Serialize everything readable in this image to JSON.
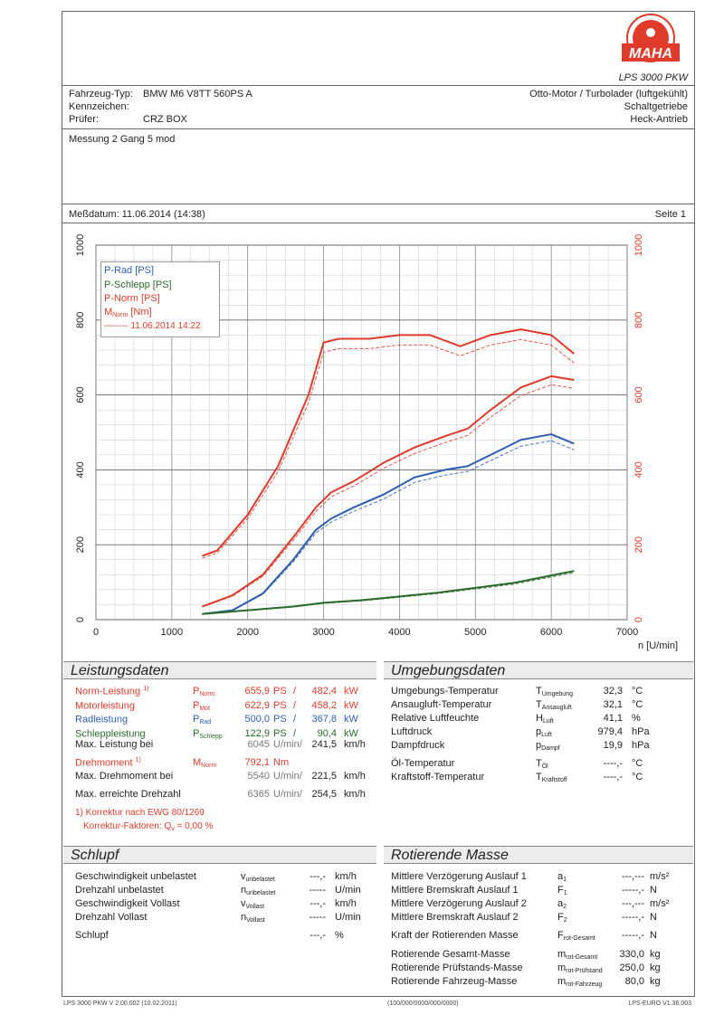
{
  "header": {
    "product": "LPS 3000 PKW",
    "brand": "MAHA",
    "vehicle_type_label": "Fahrzeug-Typ:",
    "vehicle_type_value": "BMW M6 V8TT 560PS A",
    "plate_label": "Kennzeichen:",
    "plate_value": "",
    "tester_label": "Prüfer:",
    "tester_value": "CRZ BOX",
    "engine": "Otto-Motor / Turbolader (luftgekühlt)",
    "gearbox": "Schaltgetriebe",
    "drive": "Heck-Antrieb",
    "measurement": "Messung 2 Gang 5 mod",
    "date": "Meßdatum: 11.06.2014 (14:38)",
    "page": "Seite 1"
  },
  "chart_data": {
    "type": "line",
    "xlabel": "n [U/min]",
    "x_ticks": [
      0,
      1000,
      2000,
      3000,
      4000,
      5000,
      6000,
      7000
    ],
    "y_ticks": [
      0,
      200,
      400,
      600,
      800,
      1000
    ],
    "xlim": [
      0,
      7000
    ],
    "ylim": [
      0,
      1000
    ],
    "grid": true,
    "legend_position": "top-left",
    "legend": [
      "P-Rad [PS]",
      "P-Schlepp [PS]",
      "P-Norm [PS]",
      "M_Norm [Nm]"
    ],
    "legend_compare": "11.06.2014 14:22",
    "colors": {
      "rad": "#2b5fb3",
      "schlepp": "#2a6b2a",
      "norm": "#e03a2a",
      "axis_right": "#e03a2a"
    },
    "series": [
      {
        "name": "P-Rad [PS]",
        "color": "#2b5fb3",
        "x": [
          1400,
          1800,
          2200,
          2600,
          2900,
          3100,
          3400,
          3800,
          4200,
          4600,
          4900,
          5200,
          5600,
          6000,
          6300
        ],
        "y": [
          15,
          25,
          70,
          160,
          240,
          270,
          300,
          335,
          380,
          400,
          410,
          440,
          480,
          495,
          470
        ]
      },
      {
        "name": "P-Schlepp [PS]",
        "color": "#2a6b2a",
        "x": [
          1400,
          2000,
          2600,
          3000,
          3500,
          4000,
          4500,
          5000,
          5500,
          6000,
          6300
        ],
        "y": [
          15,
          25,
          35,
          45,
          52,
          62,
          72,
          85,
          98,
          118,
          130
        ]
      },
      {
        "name": "P-Norm [PS]",
        "color": "#e03a2a",
        "x": [
          1400,
          1800,
          2200,
          2600,
          2900,
          3100,
          3400,
          3800,
          4200,
          4600,
          4900,
          5200,
          5600,
          6000,
          6300
        ],
        "y": [
          35,
          65,
          120,
          220,
          300,
          340,
          370,
          420,
          460,
          490,
          510,
          560,
          620,
          650,
          640
        ]
      },
      {
        "name": "M_Norm [Nm]",
        "color": "#e03a2a",
        "x": [
          1400,
          1600,
          2000,
          2400,
          2800,
          3000,
          3200,
          3600,
          4000,
          4400,
          4800,
          5200,
          5600,
          6000,
          6300
        ],
        "y": [
          170,
          185,
          280,
          410,
          600,
          740,
          750,
          750,
          760,
          760,
          730,
          760,
          775,
          760,
          710
        ]
      }
    ]
  },
  "leistungsdaten": {
    "title": "Leistungsdaten",
    "rows": [
      {
        "label": "Norm-Leistung",
        "sup": "1)",
        "sym": "P",
        "sub": "Norm",
        "v1": "655,9",
        "u1": "PS",
        "v2": "482,4",
        "u2": "kW",
        "color": "red"
      },
      {
        "label": "Motorleistung",
        "sup": "",
        "sym": "P",
        "sub": "Mot",
        "v1": "622,9",
        "u1": "PS",
        "v2": "458,2",
        "u2": "kW",
        "color": "red"
      },
      {
        "label": "Radleistung",
        "sup": "",
        "sym": "P",
        "sub": "Rad",
        "v1": "500,0",
        "u1": "PS",
        "v2": "367,8",
        "u2": "kW",
        "color": "blue"
      },
      {
        "label": "Schleppleistung",
        "sup": "",
        "sym": "P",
        "sub": "Schlepp",
        "v1": "122,9",
        "u1": "PS",
        "v2": "90,4",
        "u2": "kW",
        "color": "green"
      }
    ],
    "max_power_label": "Max. Leistung bei",
    "max_power_rpm": "6045",
    "max_power_speed": "241,5",
    "torque_label": "Drehmoment",
    "torque_sup": "1)",
    "torque_sym": "M",
    "torque_sub": "Norm",
    "torque_value": "792,1",
    "torque_unit": "Nm",
    "max_torque_label": "Max. Drehmoment bei",
    "max_torque_rpm": "5540",
    "max_torque_speed": "221,5",
    "max_rpm_label": "Max. erreichte Drehzahl",
    "max_rpm": "6365",
    "max_rpm_speed": "254,5",
    "rpm_unit": "U/min/",
    "kmh_unit": "km/h",
    "note1": "1) Korrektur nach EWG 80/1269",
    "note2": "Korrektur-Faktoren: Q",
    "note2_sub": "v",
    "note2_value": "=   0,00 %"
  },
  "umgebungsdaten": {
    "title": "Umgebungsdaten",
    "rows": [
      {
        "label": "Umgebungs-Temperatur",
        "sym": "T",
        "sub": "Umgebung",
        "value": "32,3",
        "unit": "°C"
      },
      {
        "label": "Ansaugluft-Temperatur",
        "sym": "T",
        "sub": "Ansaugluft",
        "value": "32,1",
        "unit": "°C"
      },
      {
        "label": "Relative Luftfeuchte",
        "sym": "H",
        "sub": "Luft",
        "value": "41,1",
        "unit": "%"
      },
      {
        "label": "Luftdruck",
        "sym": "p",
        "sub": "Luft",
        "value": "979,4",
        "unit": "hPa"
      },
      {
        "label": "Dampfdruck",
        "sym": "p",
        "sub": "Dampf",
        "value": "19,9",
        "unit": "hPa"
      },
      {
        "label": "Öl-Temperatur",
        "sym": "T",
        "sub": "Öl",
        "value": "----,-",
        "unit": "°C"
      },
      {
        "label": "Kraftstoff-Temperatur",
        "sym": "T",
        "sub": "Kraftstoff",
        "value": "----,-",
        "unit": "°C"
      }
    ]
  },
  "schlupf": {
    "title": "Schlupf",
    "rows": [
      {
        "label": "Geschwindigkeit unbelastet",
        "sym": "v",
        "sub": "unbelastet",
        "value": "---,-",
        "unit": "km/h"
      },
      {
        "label": "Drehzahl unbelastet",
        "sym": "n",
        "sub": "unbelastet",
        "value": "-----",
        "unit": "U/min"
      },
      {
        "label": "Geschwindigkeit Vollast",
        "sym": "v",
        "sub": "Vollast",
        "value": "---,-",
        "unit": "km/h"
      },
      {
        "label": "Drehzahl Vollast",
        "sym": "n",
        "sub": "Vollast",
        "value": "-----",
        "unit": "U/min"
      },
      {
        "label": "Schlupf",
        "sym": "",
        "sub": "",
        "value": "---,-",
        "unit": "%"
      }
    ]
  },
  "rotierende_masse": {
    "title": "Rotierende Masse",
    "rows": [
      {
        "label": "Mittlere Verzögerung Auslauf 1",
        "sym": "a",
        "sub": "1",
        "value": "---,---",
        "unit": "m/s²"
      },
      {
        "label": "Mittlere Bremskraft Auslauf 1",
        "sym": "F",
        "sub": "1",
        "value": "-----,-",
        "unit": "N"
      },
      {
        "label": "Mittlere Verzögerung Auslauf 2",
        "sym": "a",
        "sub": "2",
        "value": "---,---",
        "unit": "m/s²"
      },
      {
        "label": "Mittlere Bremskraft Auslauf 2",
        "sym": "F",
        "sub": "2",
        "value": "-----,-",
        "unit": "N"
      },
      {
        "label": "Kraft der Rotierenden Masse",
        "sym": "F",
        "sub": "rot-Gesamt",
        "value": "-----,-",
        "unit": "N"
      },
      {
        "label": "Rotierende Gesamt-Masse",
        "sym": "m",
        "sub": "rot-Gesamt",
        "value": "330,0",
        "unit": "kg"
      },
      {
        "label": "Rotierende Prüfstands-Masse",
        "sym": "m",
        "sub": "rot-Prüfstand",
        "value": "250,0",
        "unit": "kg"
      },
      {
        "label": "Rotierende Fahrzeug-Masse",
        "sym": "m",
        "sub": "rot-Fahrzeug",
        "value": "80,0",
        "unit": "kg"
      }
    ]
  },
  "footer": {
    "left": "LPS 3000 PKW V 2.00.002 (10.02.2011)",
    "center": "(100/000/0000/000/0000)",
    "right": "LPS-EURO V1.36.003"
  }
}
